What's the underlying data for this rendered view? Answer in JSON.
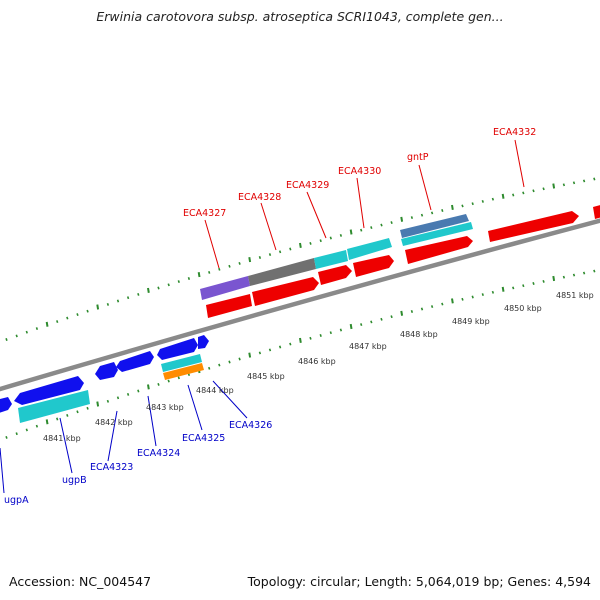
{
  "title": "Erwinia carotovora subsp. atroseptica SCRI1043, complete gen...",
  "footer": {
    "accession": "Accession: NC_004547",
    "topology": "Topology: circular; Length: 5,064,019 bp; Genes: 4,594"
  },
  "kbp_labels": [
    "4841 kbp",
    "4842 kbp",
    "4843 kbp",
    "4844 kbp",
    "4845 kbp",
    "4846 kbp",
    "4847 kbp",
    "4848 kbp",
    "4849 kbp",
    "4850 kbp",
    "4851 kbp"
  ],
  "upper_gene_labels": [
    "ECA4327",
    "ECA4328",
    "ECA4329",
    "ECA4330",
    "gntP",
    "ECA4332"
  ],
  "lower_gene_labels": [
    "ugpA",
    "ugpB",
    "ECA4323",
    "ECA4324",
    "ECA4325",
    "ECA4326"
  ],
  "colors": {
    "backbone": "#8a8a8a",
    "tick": "#2e8b2e",
    "red_feature": "#ee0000",
    "blue_feature": "#1010ee",
    "cyan_feature": "#20c8cc",
    "purple_feature": "#7a55d0",
    "gray_feature": "#707070",
    "steel_feature": "#4a7ab0",
    "orange_feature": "#ff8c00",
    "upper_label": "#e00000",
    "lower_label": "#0000c8"
  }
}
